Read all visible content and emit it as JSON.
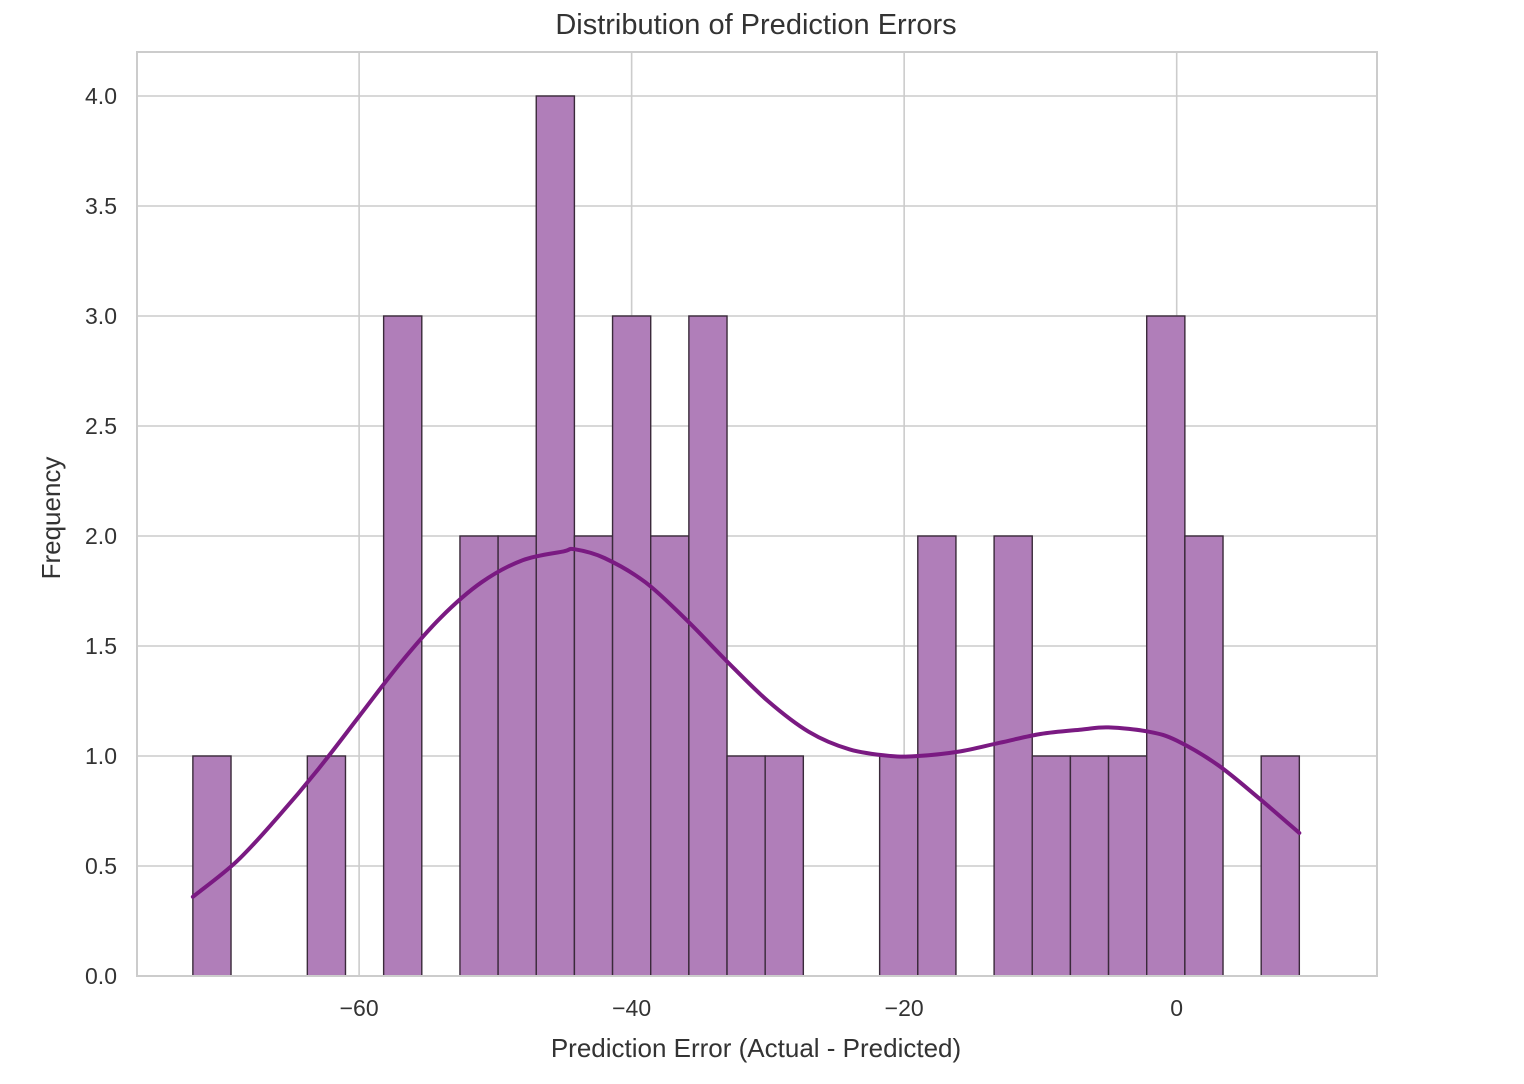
{
  "chart_data": {
    "type": "bar",
    "title": "Distribution of Prediction Errors",
    "xlabel": "Prediction Error (Actual - Predicted)",
    "ylabel": "Frequency",
    "xlim": [
      -76.3,
      14.7
    ],
    "ylim": [
      0,
      4.2
    ],
    "xticks": [
      -60,
      -40,
      -20,
      0
    ],
    "xtick_labels": [
      "−60",
      "−40",
      "−20",
      "0"
    ],
    "yticks": [
      0.0,
      0.5,
      1.0,
      1.5,
      2.0,
      2.5,
      3.0,
      3.5,
      4.0
    ],
    "ytick_labels": [
      "0.0",
      "0.5",
      "1.0",
      "1.5",
      "2.0",
      "2.5",
      "3.0",
      "3.5",
      "4.0"
    ],
    "grid": true,
    "bin_width": 2.8,
    "bin_start": -72.2,
    "bins": [
      {
        "left": -72.2,
        "right": -69.4,
        "count": 1
      },
      {
        "left": -69.4,
        "right": -66.6,
        "count": 0
      },
      {
        "left": -66.6,
        "right": -63.8,
        "count": 0
      },
      {
        "left": -63.8,
        "right": -61.0,
        "count": 1
      },
      {
        "left": -61.0,
        "right": -58.2,
        "count": 0
      },
      {
        "left": -58.2,
        "right": -55.4,
        "count": 3
      },
      {
        "left": -55.4,
        "right": -52.6,
        "count": 0
      },
      {
        "left": -52.6,
        "right": -49.8,
        "count": 2
      },
      {
        "left": -49.8,
        "right": -47.0,
        "count": 2
      },
      {
        "left": -47.0,
        "right": -44.2,
        "count": 4
      },
      {
        "left": -44.2,
        "right": -41.4,
        "count": 2
      },
      {
        "left": -41.4,
        "right": -38.6,
        "count": 3
      },
      {
        "left": -38.6,
        "right": -35.8,
        "count": 2
      },
      {
        "left": -35.8,
        "right": -33.0,
        "count": 3
      },
      {
        "left": -33.0,
        "right": -30.2,
        "count": 1
      },
      {
        "left": -30.2,
        "right": -27.4,
        "count": 1
      },
      {
        "left": -27.4,
        "right": -24.6,
        "count": 0
      },
      {
        "left": -24.6,
        "right": -21.8,
        "count": 0
      },
      {
        "left": -21.8,
        "right": -19.0,
        "count": 1
      },
      {
        "left": -19.0,
        "right": -16.2,
        "count": 2
      },
      {
        "left": -16.2,
        "right": -13.4,
        "count": 0
      },
      {
        "left": -13.4,
        "right": -10.6,
        "count": 2
      },
      {
        "left": -10.6,
        "right": -7.8,
        "count": 1
      },
      {
        "left": -7.8,
        "right": -5.0,
        "count": 1
      },
      {
        "left": -5.0,
        "right": -2.2,
        "count": 1
      },
      {
        "left": -2.2,
        "right": 0.6,
        "count": 3
      },
      {
        "left": 0.6,
        "right": 3.4,
        "count": 2
      },
      {
        "left": 3.4,
        "right": 6.2,
        "count": 0
      },
      {
        "left": 6.2,
        "right": 9.0,
        "count": 1
      }
    ],
    "kde": {
      "x": [
        -72.2,
        -69.0,
        -66.0,
        -63.0,
        -60.0,
        -57.0,
        -54.0,
        -51.0,
        -48.0,
        -45.0,
        -44.2,
        -42.0,
        -39.0,
        -36.0,
        -33.0,
        -30.0,
        -27.0,
        -24.0,
        -21.0,
        -19.0,
        -16.0,
        -13.0,
        -10.0,
        -7.0,
        -5.0,
        -2.0,
        0.0,
        3.0,
        6.0,
        9.0
      ],
      "y": [
        0.36,
        0.52,
        0.72,
        0.94,
        1.18,
        1.42,
        1.63,
        1.79,
        1.89,
        1.93,
        1.94,
        1.9,
        1.79,
        1.62,
        1.43,
        1.25,
        1.11,
        1.03,
        1.0,
        1.0,
        1.02,
        1.06,
        1.1,
        1.12,
        1.13,
        1.11,
        1.07,
        0.96,
        0.81,
        0.65
      ]
    },
    "colors": {
      "bar_fill": "#b07eb9",
      "bar_edge": "#3a2a3a",
      "kde_line": "#7a1a82",
      "grid": "#cccccc",
      "frame": "#cccccc"
    }
  }
}
